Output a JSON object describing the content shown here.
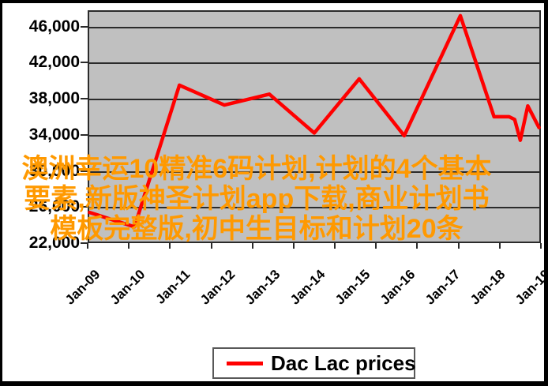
{
  "watermark": {
    "lines": [
      "澳洲幸运10精准6码计划,计划的4个基本",
      "要素,新版神圣计划app下载,商业计划书",
      "模板完整版,初中生目标和计划20条"
    ],
    "color": "#FF9900"
  },
  "legend": {
    "label": "Dac Lac prices",
    "marker_color": "#FF0000"
  },
  "colors": {
    "plot_background": "#c0c0c0",
    "gridline": "#2b2b2b",
    "series_line": "#FF0000",
    "watermark_text": "#FF9900",
    "axis_text": "#000000",
    "frame_border": "#000000"
  },
  "chart_data": {
    "type": "line",
    "title": "",
    "xlabel": "",
    "ylabel": "",
    "grid": true,
    "legend_position": "bottom",
    "plot_area_style": "gray-excel",
    "ylim": [
      22000,
      47800
    ],
    "gridline_values": [
      26000,
      30000,
      34000,
      38000,
      42000,
      46000
    ],
    "y_axis": {
      "tick_values": [
        46000,
        42000,
        38000,
        34000,
        30000,
        26000,
        22000
      ],
      "tick_labels": [
        "46,000",
        "42,000",
        "38,000",
        "34,000",
        "30,000",
        "26,000",
        "22,000"
      ]
    },
    "x_axis": {
      "labels": [
        "Jan-09",
        "Jan-10",
        "Jan-11",
        "Jan-12",
        "Jan-13",
        "Jan-14",
        "Jan-15",
        "Jan-16",
        "Jan-17",
        "Jan-18",
        "Jan-19"
      ],
      "months_domain": 121,
      "boundary_tick_count": 12,
      "label_rotation_deg": -45
    },
    "series": [
      {
        "name": "Dac Lac prices",
        "color": "#FF0000",
        "points": [
          {
            "month": "Jan-09",
            "m": 0,
            "value": 25400
          },
          {
            "month": "Jan-10",
            "m": 12,
            "value": 23800
          },
          {
            "month": "Jan-11",
            "m": 24,
            "value": 39500
          },
          {
            "month": "Jan-12",
            "m": 36,
            "value": 37300
          },
          {
            "month": "Jan-13",
            "m": 48,
            "value": 38500
          },
          {
            "month": "Jan-14",
            "m": 60,
            "value": 34200
          },
          {
            "month": "Jan-15",
            "m": 72,
            "value": 40200
          },
          {
            "month": "Jan-16",
            "m": 84,
            "value": 33900
          },
          {
            "month": "Apr-17",
            "m": 99,
            "value": 47200
          },
          {
            "month": "Dec-17",
            "m": 108,
            "value": 36000
          },
          {
            "month": "May-18",
            "m": 112,
            "value": 36000
          },
          {
            "month": "Jun-18",
            "m": 113.5,
            "value": 35700
          },
          {
            "month": "Jul-18",
            "m": 115,
            "value": 33400
          },
          {
            "month": "Sep-18",
            "m": 117,
            "value": 37200
          },
          {
            "month": "Jan-19",
            "m": 120,
            "value": 34800
          }
        ]
      }
    ]
  }
}
